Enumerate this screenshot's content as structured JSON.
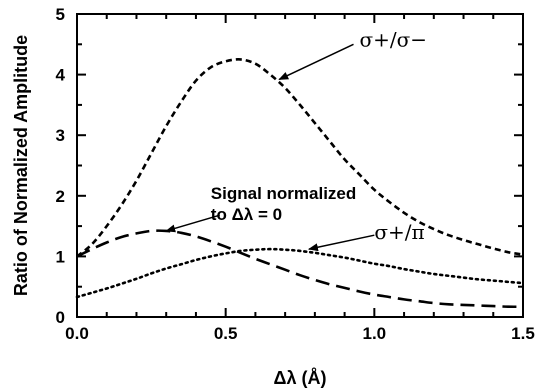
{
  "chart_data": {
    "type": "line",
    "title": "",
    "xlabel": "Δλ (Å)",
    "ylabel": "Ratio of Normalized Amplitude",
    "xlim": [
      0.0,
      1.5
    ],
    "ylim": [
      0,
      5
    ],
    "x_ticks": [
      "0.0",
      "0.5",
      "1.0",
      "1.5"
    ],
    "y_ticks": [
      "0",
      "1",
      "2",
      "3",
      "4",
      "5"
    ],
    "grid": false,
    "legend": "none",
    "series": [
      {
        "name": "σ+/σ−",
        "style": "dashed-short",
        "x": [
          0.0,
          0.05,
          0.1,
          0.15,
          0.2,
          0.25,
          0.3,
          0.35,
          0.4,
          0.45,
          0.5,
          0.55,
          0.6,
          0.65,
          0.7,
          0.75,
          0.8,
          0.85,
          0.9,
          0.95,
          1.0,
          1.05,
          1.1,
          1.15,
          1.2,
          1.25,
          1.3,
          1.35,
          1.4,
          1.45,
          1.5
        ],
        "y": [
          1.0,
          1.2,
          1.5,
          1.85,
          2.25,
          2.7,
          3.15,
          3.55,
          3.9,
          4.12,
          4.22,
          4.25,
          4.18,
          4.0,
          3.78,
          3.5,
          3.2,
          2.9,
          2.6,
          2.35,
          2.1,
          1.9,
          1.72,
          1.57,
          1.45,
          1.35,
          1.27,
          1.2,
          1.13,
          1.07,
          1.03
        ]
      },
      {
        "name": "Signal normalized to Δλ = 0",
        "style": "dashed-long",
        "x": [
          0.0,
          0.05,
          0.1,
          0.15,
          0.2,
          0.25,
          0.3,
          0.35,
          0.4,
          0.45,
          0.5,
          0.55,
          0.6,
          0.65,
          0.7,
          0.75,
          0.8,
          0.85,
          0.9,
          0.95,
          1.0,
          1.05,
          1.1,
          1.15,
          1.2,
          1.25,
          1.3,
          1.35,
          1.4,
          1.45,
          1.5
        ],
        "y": [
          1.0,
          1.12,
          1.23,
          1.32,
          1.38,
          1.42,
          1.42,
          1.39,
          1.33,
          1.25,
          1.16,
          1.06,
          0.96,
          0.87,
          0.78,
          0.69,
          0.61,
          0.54,
          0.48,
          0.42,
          0.37,
          0.33,
          0.29,
          0.26,
          0.23,
          0.21,
          0.2,
          0.19,
          0.18,
          0.17,
          0.17
        ]
      },
      {
        "name": "σ+/π",
        "style": "dotted",
        "x": [
          0.0,
          0.05,
          0.1,
          0.15,
          0.2,
          0.25,
          0.3,
          0.35,
          0.4,
          0.45,
          0.5,
          0.55,
          0.6,
          0.65,
          0.7,
          0.75,
          0.8,
          0.85,
          0.9,
          0.95,
          1.0,
          1.05,
          1.1,
          1.15,
          1.2,
          1.25,
          1.3,
          1.35,
          1.4,
          1.45,
          1.5
        ],
        "y": [
          0.33,
          0.4,
          0.47,
          0.55,
          0.63,
          0.72,
          0.8,
          0.87,
          0.94,
          1.0,
          1.05,
          1.09,
          1.11,
          1.12,
          1.11,
          1.09,
          1.06,
          1.02,
          0.98,
          0.93,
          0.88,
          0.84,
          0.79,
          0.75,
          0.71,
          0.68,
          0.65,
          0.62,
          0.6,
          0.58,
          0.56
        ]
      }
    ],
    "annotations": [
      {
        "text": "σ+/σ−",
        "x": 0.95,
        "y": 4.58
      },
      {
        "text_lines": [
          "Signal normalized",
          "to Δλ = 0"
        ],
        "x": 0.45,
        "y": 1.95
      },
      {
        "text": "σ+/π",
        "x": 1.0,
        "y": 1.4
      }
    ]
  }
}
